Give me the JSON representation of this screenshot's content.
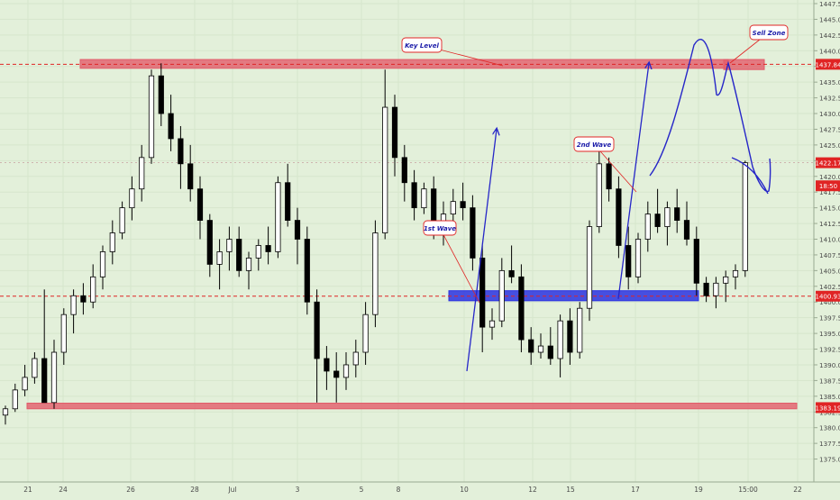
{
  "chart_data": {
    "type": "candlestick",
    "title": "",
    "xlabel": "",
    "ylabel": "",
    "ylim": [
      1372.5,
      1447.5
    ],
    "background": "#e3f0da",
    "colors": {
      "bull_body": "#ffffff",
      "bear_body": "#000000",
      "candle_outline": "#000000",
      "level_line": "#e02424",
      "zone_red_fill": "#e25c6a",
      "zone_blue_fill": "#2a32e0",
      "wave_line": "#2626c8",
      "callout_border": "#e02424",
      "callout_text": "#1a1aa8",
      "axis_text": "#4a4a4a"
    },
    "y_ticks": [
      "1447.50",
      "1445.00",
      "1442.50",
      "1440.00",
      "1437.50",
      "1435.00",
      "1432.50",
      "1430.00",
      "1427.50",
      "1425.00",
      "1422.50",
      "1420.00",
      "1417.50",
      "1415.00",
      "1412.50",
      "1410.00",
      "1407.50",
      "1405.00",
      "1402.50",
      "1400.00",
      "1397.50",
      "1395.00",
      "1392.50",
      "1390.00",
      "1387.50",
      "1385.00",
      "1382.50",
      "1380.00",
      "1377.50",
      "1375.00"
    ],
    "x_ticks": [
      "21",
      "24",
      "26",
      "28",
      "Jul",
      "3",
      "5",
      "8",
      "10",
      "12",
      "15",
      "17",
      "19",
      "15:00",
      "22"
    ],
    "price_labels": [
      {
        "value": 1437.84,
        "label": "1437.84",
        "color": "#e02424"
      },
      {
        "value": 1422.17,
        "label": "1422.17",
        "color": "#e02424"
      },
      {
        "value": 1418.5,
        "label": "18:50",
        "color": "#e02424"
      },
      {
        "value": 1400.93,
        "label": "1400.93",
        "color": "#e02424"
      },
      {
        "value": 1383.19,
        "label": "1383.19",
        "color": "#e02424"
      }
    ],
    "levels": [
      {
        "value": 1437.84,
        "style": "dashed"
      },
      {
        "value": 1400.93,
        "style": "dashed"
      }
    ],
    "zones": [
      {
        "name": "resistance",
        "x_from": 0,
        "x_to": 100,
        "y_from": 1437.2,
        "y_to": 1438.6,
        "color": "#e25c6a"
      },
      {
        "name": "sell",
        "x_from": 99,
        "x_to": 104,
        "y_from": 1437.0,
        "y_to": 1438.6,
        "color": "#e25c6a"
      },
      {
        "name": "support-blue",
        "x_from": 59,
        "x_to": 93,
        "y_from": 1400.2,
        "y_to": 1401.8,
        "color": "#2a32e0"
      },
      {
        "name": "support",
        "x_from": 0,
        "x_to": 107,
        "y_from": 1383.0,
        "y_to": 1383.9,
        "color": "#e25c6a"
      }
    ],
    "annotations": [
      {
        "name": "key-level",
        "text": "Key Level",
        "x": 54,
        "y": 1442.5,
        "target_x": 66,
        "target_y": 1437.9
      },
      {
        "name": "sell-zone",
        "text": "Sell Zone",
        "x": 103,
        "y": 1444.0,
        "target_x": 99,
        "target_y": 1438.4
      },
      {
        "name": "2nd-wave",
        "text": "2nd Wave",
        "x": 79,
        "y": 1424.0,
        "target_x": 86,
        "target_y": 1418.5
      },
      {
        "name": "1st-wave",
        "text": "1st Wave",
        "x": 58,
        "y": 1410.8,
        "target_x": 65,
        "target_y": 1401.8
      }
    ],
    "waves": [
      {
        "name": "wave-1",
        "points": [
          [
            62,
            1389
          ],
          [
            66,
            1427.5
          ]
        ],
        "arrow": true
      },
      {
        "name": "wave-2",
        "points": [
          [
            83,
            1400.5
          ],
          [
            87,
            1438
          ]
        ],
        "arrow": true
      },
      {
        "name": "projection",
        "points": [
          [
            88,
            1420
          ],
          [
            90,
            1430
          ],
          [
            92,
            1438
          ],
          [
            94,
            1442.5
          ],
          [
            95.5,
            1437
          ],
          [
            96.5,
            1433
          ],
          [
            97.5,
            1434
          ],
          [
            99,
            1439
          ],
          [
            100.5,
            1431
          ],
          [
            102,
            1421
          ],
          [
            103,
            1417.5
          ],
          [
            104,
            1421
          ],
          [
            104.4,
            1422
          ]
        ],
        "arrow": false
      }
    ],
    "candles": [
      [
        1382,
        1383.5,
        1380.5,
        1383
      ],
      [
        1383,
        1387,
        1382.5,
        1386
      ],
      [
        1386,
        1390,
        1385,
        1388
      ],
      [
        1388,
        1392,
        1387,
        1391
      ],
      [
        1391,
        1402,
        1384,
        1384
      ],
      [
        1384,
        1394,
        1383,
        1392
      ],
      [
        1392,
        1399,
        1390,
        1398
      ],
      [
        1398,
        1402,
        1395,
        1401
      ],
      [
        1401,
        1403,
        1398,
        1400
      ],
      [
        1400,
        1406,
        1399,
        1404
      ],
      [
        1404,
        1409,
        1402,
        1408
      ],
      [
        1408,
        1413,
        1406,
        1411
      ],
      [
        1411,
        1416,
        1410,
        1415
      ],
      [
        1415,
        1420,
        1413,
        1418
      ],
      [
        1418,
        1425,
        1416,
        1423
      ],
      [
        1423,
        1437,
        1422,
        1436
      ],
      [
        1436,
        1438,
        1428,
        1430
      ],
      [
        1430,
        1433,
        1424,
        1426
      ],
      [
        1426,
        1428,
        1418,
        1422
      ],
      [
        1422,
        1425,
        1416,
        1418
      ],
      [
        1418,
        1420,
        1410,
        1413
      ],
      [
        1413,
        1414,
        1404,
        1406
      ],
      [
        1406,
        1410,
        1402,
        1408
      ],
      [
        1408,
        1412,
        1405,
        1410
      ],
      [
        1410,
        1412,
        1404,
        1405
      ],
      [
        1405,
        1408,
        1402,
        1407
      ],
      [
        1407,
        1410,
        1405,
        1409
      ],
      [
        1409,
        1412,
        1406,
        1408
      ],
      [
        1408,
        1420,
        1407,
        1419
      ],
      [
        1419,
        1422,
        1412,
        1413
      ],
      [
        1413,
        1415,
        1406,
        1410
      ],
      [
        1410,
        1412,
        1398,
        1400
      ],
      [
        1400,
        1402,
        1384,
        1391
      ],
      [
        1391,
        1393,
        1386,
        1389
      ],
      [
        1389,
        1392,
        1384,
        1388
      ],
      [
        1388,
        1392,
        1386,
        1390
      ],
      [
        1390,
        1394,
        1388,
        1392
      ],
      [
        1392,
        1400,
        1390,
        1398
      ],
      [
        1398,
        1413,
        1396,
        1411
      ],
      [
        1411,
        1437,
        1410,
        1431
      ],
      [
        1431,
        1433,
        1420,
        1423
      ],
      [
        1423,
        1425,
        1416,
        1419
      ],
      [
        1419,
        1421,
        1413,
        1415
      ],
      [
        1415,
        1419,
        1414,
        1418
      ],
      [
        1418,
        1420,
        1410,
        1411
      ],
      [
        1411,
        1416,
        1409,
        1414
      ],
      [
        1414,
        1418,
        1412,
        1416
      ],
      [
        1416,
        1419,
        1413,
        1415
      ],
      [
        1415,
        1417,
        1405,
        1407
      ],
      [
        1407,
        1409,
        1392,
        1396
      ],
      [
        1396,
        1399,
        1394,
        1397
      ],
      [
        1397,
        1407,
        1396,
        1405
      ],
      [
        1405,
        1409,
        1403,
        1404
      ],
      [
        1404,
        1406,
        1392,
        1394
      ],
      [
        1394,
        1396,
        1390,
        1392
      ],
      [
        1392,
        1395,
        1391,
        1393
      ],
      [
        1393,
        1396,
        1390,
        1391
      ],
      [
        1391,
        1398,
        1388,
        1397
      ],
      [
        1397,
        1399,
        1390,
        1392
      ],
      [
        1392,
        1400,
        1391,
        1399
      ],
      [
        1399,
        1413,
        1397,
        1412
      ],
      [
        1412,
        1424,
        1411,
        1422
      ],
      [
        1422,
        1423,
        1416,
        1418
      ],
      [
        1418,
        1420,
        1407,
        1409
      ],
      [
        1409,
        1412,
        1402,
        1404
      ],
      [
        1404,
        1411,
        1403,
        1410
      ],
      [
        1410,
        1416,
        1408,
        1414
      ],
      [
        1414,
        1418,
        1411,
        1412
      ],
      [
        1412,
        1416,
        1409,
        1415
      ],
      [
        1415,
        1418,
        1411,
        1413
      ],
      [
        1413,
        1416,
        1409,
        1410
      ],
      [
        1410,
        1412,
        1401,
        1403
      ],
      [
        1403,
        1404,
        1400,
        1401
      ],
      [
        1401,
        1404,
        1399,
        1403
      ],
      [
        1403,
        1405,
        1400,
        1404
      ],
      [
        1404,
        1406,
        1402,
        1405
      ],
      [
        1405,
        1422.5,
        1404,
        1422.17
      ]
    ]
  }
}
